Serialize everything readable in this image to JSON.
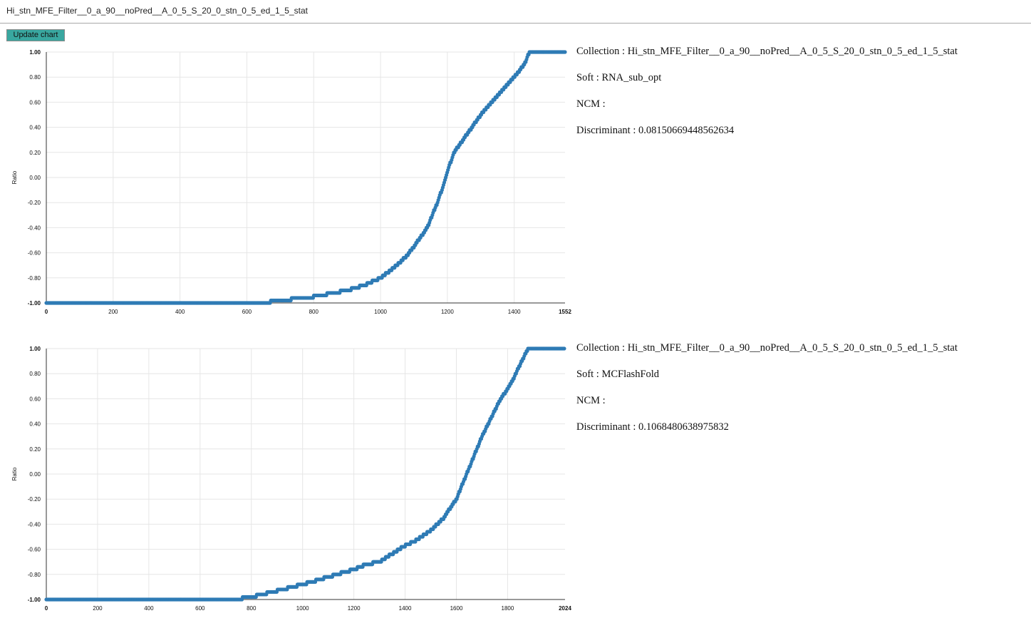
{
  "header": {
    "title": "Hi_stn_MFE_Filter__0_a_90__noPred__A_0_5_S_20_0_stn_0_5_ed_1_5_stat"
  },
  "toolbar": {
    "update_label": "Update chart"
  },
  "charts": [
    {
      "info": {
        "collection_label": "Collection : ",
        "collection_value": "Hi_stn_MFE_Filter__0_a_90__noPred__A_0_5_S_20_0_stn_0_5_ed_1_5_stat",
        "soft_label": "Soft : ",
        "soft_value": "RNA_sub_opt",
        "ncm_label": "NCM : ",
        "ncm_value": "",
        "discriminant_label": "Discriminant : ",
        "discriminant_value": "0.08150669448562634"
      }
    },
    {
      "info": {
        "collection_label": "Collection : ",
        "collection_value": "Hi_stn_MFE_Filter__0_a_90__noPred__A_0_5_S_20_0_stn_0_5_ed_1_5_stat",
        "soft_label": "Soft : ",
        "soft_value": "MCFlashFold",
        "ncm_label": "NCM : ",
        "ncm_value": "",
        "discriminant_label": "Discriminant : ",
        "discriminant_value": "0.1068480638975832"
      }
    }
  ],
  "chart_data": [
    {
      "type": "scatter",
      "ylabel": "Ratio",
      "xlabel": "",
      "xlim": [
        0,
        1552
      ],
      "ylim": [
        -1,
        1
      ],
      "x_ticks": [
        "0",
        "200",
        "400",
        "600",
        "800",
        "1000",
        "1200",
        "1400",
        "1552"
      ],
      "y_ticks": [
        "1.00",
        "0.80",
        "0.60",
        "0.40",
        "0.20",
        "0.00",
        "-0.20",
        "-0.40",
        "-0.60",
        "-0.80",
        "-1.00"
      ],
      "grid": true,
      "series_color": "#2e7bb5",
      "curve": [
        [
          0,
          -1.0
        ],
        [
          640,
          -1.0
        ],
        [
          700,
          -0.98
        ],
        [
          800,
          -0.95
        ],
        [
          900,
          -0.9
        ],
        [
          950,
          -0.86
        ],
        [
          1000,
          -0.8
        ],
        [
          1040,
          -0.72
        ],
        [
          1080,
          -0.62
        ],
        [
          1100,
          -0.55
        ],
        [
          1140,
          -0.4
        ],
        [
          1170,
          -0.2
        ],
        [
          1190,
          -0.05
        ],
        [
          1200,
          0.05
        ],
        [
          1220,
          0.2
        ],
        [
          1260,
          0.35
        ],
        [
          1300,
          0.5
        ],
        [
          1350,
          0.65
        ],
        [
          1400,
          0.8
        ],
        [
          1430,
          0.9
        ],
        [
          1445,
          1.0
        ],
        [
          1552,
          1.0
        ]
      ]
    },
    {
      "type": "scatter",
      "ylabel": "Ratio",
      "xlabel": "",
      "xlim": [
        0,
        2024
      ],
      "ylim": [
        -1,
        1
      ],
      "x_ticks": [
        "0",
        "200",
        "400",
        "600",
        "800",
        "1000",
        "1200",
        "1400",
        "1600",
        "1800",
        "2024"
      ],
      "y_ticks": [
        "1.00",
        "0.80",
        "0.60",
        "0.40",
        "0.20",
        "0.00",
        "-0.20",
        "-0.40",
        "-0.60",
        "-0.80",
        "-1.00"
      ],
      "grid": true,
      "series_color": "#2e7bb5",
      "curve": [
        [
          0,
          -1.0
        ],
        [
          730,
          -1.0
        ],
        [
          800,
          -0.98
        ],
        [
          900,
          -0.93
        ],
        [
          1000,
          -0.88
        ],
        [
          1100,
          -0.82
        ],
        [
          1200,
          -0.76
        ],
        [
          1250,
          -0.72
        ],
        [
          1300,
          -0.7
        ],
        [
          1400,
          -0.57
        ],
        [
          1450,
          -0.52
        ],
        [
          1500,
          -0.45
        ],
        [
          1550,
          -0.35
        ],
        [
          1600,
          -0.2
        ],
        [
          1640,
          0.0
        ],
        [
          1700,
          0.3
        ],
        [
          1760,
          0.55
        ],
        [
          1820,
          0.75
        ],
        [
          1860,
          0.92
        ],
        [
          1880,
          1.0
        ],
        [
          2024,
          1.0
        ]
      ]
    }
  ]
}
